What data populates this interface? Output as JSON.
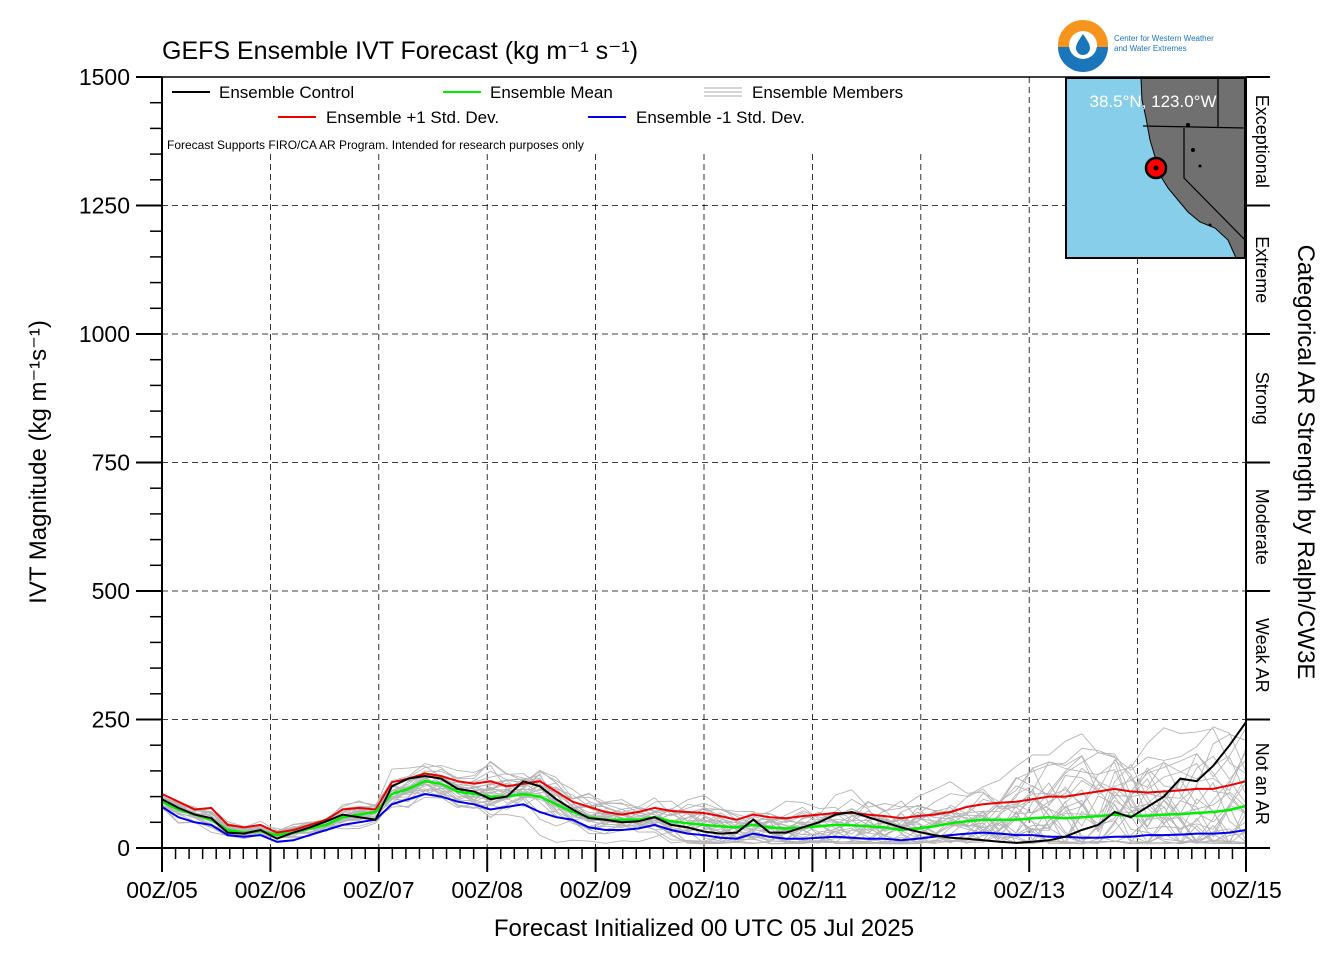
{
  "chart_data": {
    "type": "line",
    "title": "GEFS Ensemble IVT Forecast (kg m⁻¹ s⁻¹)",
    "xlabel": "Forecast Initialized 00 UTC 05 Jul 2025",
    "ylabel": "IVT Magnitude (kg m⁻¹s⁻¹)",
    "right_label": "Categorical AR Strength by Ralph/CW3E",
    "note": "Forecast Supports FIRO/CA AR Program. Intended for research purposes only",
    "x_tick_labels": [
      "00Z/05",
      "00Z/06",
      "00Z/07",
      "00Z/08",
      "00Z/09",
      "00Z/10",
      "00Z/11",
      "00Z/12",
      "00Z/13",
      "00Z/14",
      "00Z/15"
    ],
    "xlim": [
      0,
      10
    ],
    "ylim": [
      0,
      1500
    ],
    "y_ticks": [
      0,
      250,
      500,
      750,
      1000,
      1250,
      1500
    ],
    "grid": true,
    "legend_placement": "top-left",
    "categories_right": [
      {
        "label": "Not an AR",
        "range": [
          0,
          250
        ]
      },
      {
        "label": "Weak AR",
        "range": [
          250,
          500
        ]
      },
      {
        "label": "Moderate",
        "range": [
          500,
          750
        ]
      },
      {
        "label": "Strong",
        "range": [
          750,
          1000
        ]
      },
      {
        "label": "Extreme",
        "range": [
          1000,
          1250
        ]
      },
      {
        "label": "Exceptional",
        "range": [
          1250,
          1500
        ]
      }
    ],
    "series": [
      {
        "name": "Ensemble Control",
        "color": "#000000",
        "values": [
          95,
          78,
          65,
          58,
          30,
          28,
          35,
          18,
          30,
          40,
          52,
          65,
          60,
          55,
          120,
          135,
          140,
          135,
          115,
          110,
          95,
          100,
          130,
          120,
          95,
          75,
          58,
          55,
          50,
          52,
          60,
          45,
          40,
          32,
          28,
          30,
          55,
          30,
          30,
          40,
          50,
          65,
          70,
          60,
          50,
          40,
          32,
          25,
          20,
          18,
          15,
          12,
          10,
          12,
          15,
          22,
          35,
          45,
          70,
          60,
          80,
          100,
          135,
          130,
          160,
          200,
          245
        ]
      },
      {
        "name": "Ensemble Mean",
        "color": "#00ee00",
        "values": [
          90,
          75,
          65,
          55,
          35,
          30,
          33,
          25,
          30,
          38,
          45,
          60,
          65,
          70,
          105,
          115,
          130,
          125,
          110,
          105,
          100,
          100,
          105,
          100,
          85,
          70,
          60,
          55,
          55,
          55,
          60,
          52,
          48,
          45,
          42,
          40,
          45,
          40,
          38,
          40,
          42,
          45,
          44,
          42,
          40,
          35,
          38,
          42,
          48,
          52,
          55,
          55,
          55,
          58,
          60,
          58,
          60,
          62,
          65,
          62,
          63,
          65,
          66,
          68,
          70,
          74,
          82
        ]
      },
      {
        "name": "Ensemble +1 Std. Dev.",
        "color": "#ee0000",
        "values": [
          105,
          90,
          75,
          78,
          45,
          40,
          45,
          30,
          35,
          45,
          55,
          75,
          78,
          75,
          128,
          135,
          145,
          140,
          130,
          125,
          130,
          120,
          125,
          130,
          110,
          90,
          80,
          70,
          65,
          70,
          78,
          72,
          70,
          68,
          62,
          55,
          65,
          60,
          58,
          62,
          65,
          68,
          68,
          65,
          62,
          58,
          62,
          65,
          70,
          80,
          85,
          88,
          90,
          95,
          100,
          100,
          105,
          110,
          115,
          110,
          108,
          110,
          112,
          115,
          115,
          122,
          130
        ]
      },
      {
        "name": "Ensemble -1 Std. Dev.",
        "color": "#0000ee",
        "values": [
          80,
          60,
          50,
          45,
          25,
          22,
          25,
          12,
          15,
          25,
          35,
          45,
          50,
          55,
          85,
          95,
          105,
          100,
          90,
          85,
          75,
          80,
          85,
          70,
          60,
          55,
          40,
          35,
          35,
          38,
          45,
          35,
          28,
          25,
          20,
          18,
          28,
          22,
          18,
          18,
          20,
          22,
          20,
          18,
          18,
          15,
          18,
          22,
          25,
          28,
          30,
          28,
          25,
          25,
          22,
          22,
          20,
          20,
          22,
          22,
          25,
          25,
          26,
          28,
          28,
          30,
          35
        ]
      }
    ],
    "members_legend": "Ensemble Members",
    "member_count": 30,
    "inset": {
      "label": "38.5°N, 123.0°W",
      "lat": 38.5,
      "lon": -123.0
    },
    "logo_text": [
      "Center for Western Weather",
      "and Water Extremes"
    ]
  }
}
